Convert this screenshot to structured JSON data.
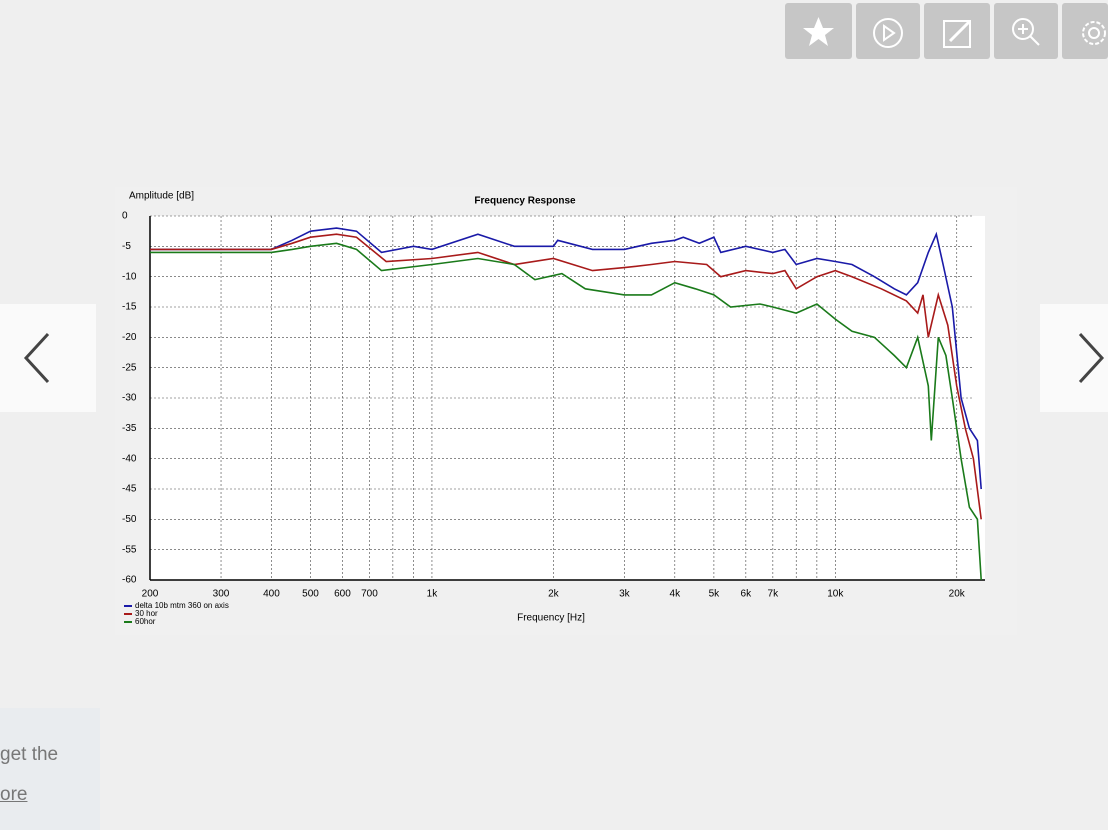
{
  "chart_data": {
    "type": "line",
    "title": "Frequency Response",
    "y_label": "Amplitude [dB]",
    "x_label": "Frequency [Hz]",
    "log_x": true,
    "grid": true,
    "legend": "bottom-left",
    "xlim": [
      200,
      23500
    ],
    "ylim": [
      -60,
      0
    ],
    "xticks": [
      200,
      300,
      400,
      500,
      600,
      700,
      {
        "value": 1000,
        "label": "1k"
      },
      {
        "value": 2000,
        "label": "2k"
      },
      {
        "value": 3000,
        "label": "3k"
      },
      {
        "value": 4000,
        "label": "4k"
      },
      {
        "value": 5000,
        "label": "5k"
      },
      {
        "value": 6000,
        "label": "6k"
      },
      {
        "value": 7000,
        "label": "7k"
      },
      {
        "value": 10000,
        "label": "10k"
      },
      {
        "value": 20000,
        "label": "20k"
      }
    ],
    "xminor": [
      800,
      900,
      8000,
      9000
    ],
    "yticks": [
      0,
      -5,
      -10,
      -15,
      -20,
      -25,
      -30,
      -35,
      -40,
      -45,
      -50,
      -55,
      -60
    ],
    "series": [
      {
        "name": "delta 10b mtm 360 on axis",
        "color": "#1a1aa8",
        "x": [
          200,
          400,
          450,
          500,
          580,
          650,
          750,
          900,
          1000,
          1300,
          1600,
          2000,
          2050,
          2500,
          3000,
          3500,
          4000,
          4200,
          4600,
          5000,
          5200,
          6000,
          7000,
          7500,
          8000,
          9000,
          10000,
          11000,
          12500,
          14000,
          15000,
          16000,
          17000,
          17800,
          18500,
          19500,
          20500,
          21500,
          22500,
          23000
        ],
        "values": [
          -5.5,
          -5.5,
          -4,
          -2.5,
          -2,
          -2.5,
          -6,
          -5,
          -5.5,
          -3,
          -5,
          -5,
          -4,
          -5.5,
          -5.5,
          -4.5,
          -4,
          -3.5,
          -4.5,
          -3.5,
          -6,
          -5,
          -6,
          -5.5,
          -8,
          -7,
          -7.5,
          -8,
          -10,
          -12,
          -13,
          -11,
          -6,
          -3,
          -8,
          -15,
          -30,
          -35,
          -37,
          -45
        ]
      },
      {
        "name": "30 hor",
        "color": "#a81a1a",
        "x": [
          200,
          400,
          450,
          500,
          580,
          650,
          770,
          1000,
          1300,
          1600,
          2000,
          2500,
          3000,
          3500,
          4000,
          4800,
          5200,
          6000,
          7000,
          7500,
          8000,
          9000,
          10000,
          11000,
          13000,
          15000,
          16000,
          16500,
          17000,
          18000,
          19000,
          20000,
          21000,
          22000,
          23000
        ],
        "values": [
          -5.5,
          -5.5,
          -4.5,
          -3.5,
          -3,
          -3.5,
          -7.5,
          -7,
          -6,
          -8,
          -7,
          -9,
          -8.5,
          -8,
          -7.5,
          -8,
          -10,
          -9,
          -9.5,
          -9,
          -12,
          -10,
          -9,
          -10,
          -12,
          -14,
          -16,
          -13,
          -20,
          -13,
          -18,
          -28,
          -35,
          -40,
          -50
        ]
      },
      {
        "name": "60hor",
        "color": "#1a7a1a",
        "x": [
          200,
          400,
          450,
          500,
          580,
          650,
          750,
          1000,
          1300,
          1600,
          1800,
          2100,
          2400,
          3000,
          3500,
          4000,
          4500,
          5000,
          5500,
          6500,
          7000,
          8000,
          9000,
          10000,
          11000,
          12500,
          14000,
          15000,
          16000,
          17000,
          17300,
          18000,
          18800,
          19500,
          20500,
          21500,
          22500,
          23000
        ],
        "values": [
          -6,
          -6,
          -5.5,
          -5,
          -4.5,
          -5.5,
          -9,
          -8,
          -7,
          -8,
          -10.5,
          -9.5,
          -12,
          -13,
          -13,
          -11,
          -12,
          -13,
          -15,
          -14.5,
          -15,
          -16,
          -14.5,
          -17,
          -19,
          -20,
          -23,
          -25,
          -20,
          -28,
          -37,
          -20,
          -23,
          -30,
          -40,
          -48,
          -50,
          -60
        ]
      }
    ]
  },
  "side_panel": {
    "line1": "get the",
    "link": "ore"
  }
}
